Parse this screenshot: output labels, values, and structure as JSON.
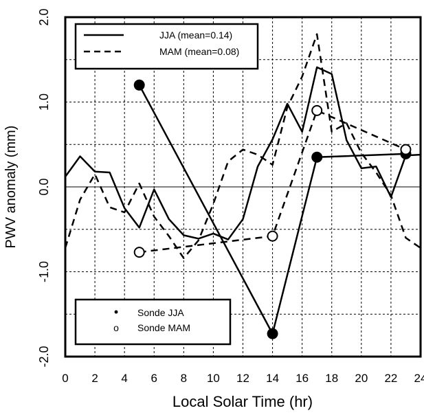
{
  "chart_data": {
    "type": "line",
    "xlabel": "Local Solar Time (hr)",
    "ylabel": "PWV anomaly (mm)",
    "xlim": [
      0,
      24
    ],
    "ylim": [
      -2.0,
      2.0
    ],
    "x_ticks": [
      0,
      2,
      4,
      6,
      8,
      10,
      12,
      14,
      16,
      18,
      20,
      22,
      24
    ],
    "x_tick_labels": [
      "0",
      "2",
      "4",
      "6",
      "8",
      "10",
      "12",
      "14",
      "16",
      "18",
      "20",
      "22",
      "24"
    ],
    "y_ticks": [
      -2.0,
      -1.0,
      0.0,
      1.0,
      2.0
    ],
    "y_tick_labels": [
      "-2.0",
      "-1.0",
      "0.0",
      "1.0",
      "2.0"
    ],
    "grid": "dashed",
    "series": [
      {
        "name": "JJA (mean=0.14)",
        "style": "solid",
        "x": [
          0,
          1,
          2,
          3,
          4,
          5,
          6,
          7,
          8,
          9,
          10,
          11,
          12,
          13,
          14,
          15,
          16,
          17,
          18,
          19,
          20,
          21,
          22,
          23,
          24
        ],
        "y": [
          0.12,
          0.36,
          0.18,
          0.17,
          -0.25,
          -0.48,
          -0.03,
          -0.38,
          -0.57,
          -0.61,
          -0.55,
          -0.62,
          -0.38,
          0.24,
          0.56,
          0.98,
          0.65,
          1.41,
          1.33,
          0.55,
          0.22,
          0.24,
          -0.12,
          0.37,
          0.38
        ]
      },
      {
        "name": "MAM (mean=0.08)",
        "style": "dashed",
        "x": [
          0,
          1,
          2,
          3,
          4,
          5,
          6,
          7,
          8,
          9,
          10,
          11,
          12,
          13,
          14,
          15,
          16,
          17,
          18,
          19,
          20,
          21,
          22,
          23,
          24
        ],
        "y": [
          -0.72,
          -0.15,
          0.15,
          -0.24,
          -0.3,
          0.04,
          -0.35,
          -0.58,
          -0.84,
          -0.63,
          -0.2,
          0.3,
          0.44,
          0.38,
          0.26,
          0.94,
          1.3,
          1.8,
          0.65,
          0.75,
          0.4,
          0.17,
          -0.1,
          -0.6,
          -0.72
        ]
      }
    ],
    "sonde_series": [
      {
        "name": "Sonde JJA",
        "marker": "filled",
        "style": "solid",
        "x": [
          5,
          14,
          17,
          23
        ],
        "y": [
          1.2,
          -1.73,
          0.35,
          0.39
        ]
      },
      {
        "name": "Sonde MAM",
        "marker": "open",
        "style": "dashed",
        "x": [
          5,
          14,
          17,
          23
        ],
        "y": [
          -0.77,
          -0.58,
          0.9,
          0.44
        ]
      }
    ],
    "legend": {
      "lines_placement": "top-left",
      "markers_placement": "bottom-left",
      "lines": [
        "JJA (mean=0.14)",
        "MAM (mean=0.08)"
      ],
      "markers": [
        "Sonde JJA",
        "Sonde MAM"
      ],
      "marker_symbols": [
        "•",
        "o"
      ]
    }
  }
}
